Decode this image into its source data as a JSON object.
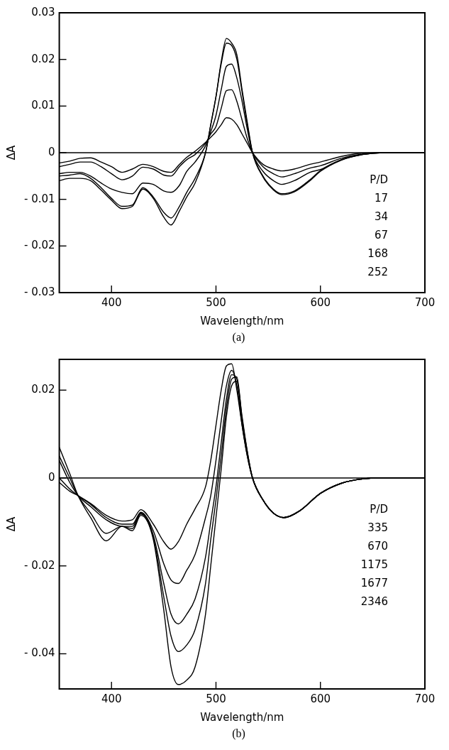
{
  "chart_data": [
    {
      "type": "line",
      "xlabel": "Wavelength/nm",
      "ylabel": "ΔA",
      "annotations": [
        "P/D",
        "17",
        "34",
        "67",
        "168",
        "252",
        "(a)"
      ],
      "grid": false,
      "marker": "none",
      "line_style": "solid",
      "xlim": [
        350,
        700
      ],
      "xticks": [
        400,
        500,
        600,
        700
      ],
      "ylim": [
        -0.03,
        0.03
      ],
      "yticks": [
        {
          "value": -0.03,
          "label": "- 0.03"
        },
        {
          "value": -0.02,
          "label": "- 0.02"
        },
        {
          "value": -0.01,
          "label": "- 0.01"
        },
        0,
        0.01,
        0.02,
        0.03
      ],
      "ref_lines": [
        {
          "axis": "y",
          "value": 0,
          "color": "#000000"
        }
      ],
      "x": [
        350,
        360,
        370,
        380,
        390,
        400,
        410,
        420,
        430,
        440,
        450,
        457,
        465,
        472,
        480,
        490,
        495,
        500,
        505,
        510,
        515,
        520,
        525,
        530,
        535,
        545,
        555,
        563,
        575,
        590,
        600,
        620,
        640,
        660,
        700
      ],
      "series": [
        {
          "color": "#000000",
          "values": [
            -0.0022,
            -0.0018,
            -0.0012,
            -0.0011,
            -0.002,
            -0.003,
            -0.0042,
            -0.0035,
            -0.0025,
            -0.003,
            -0.004,
            -0.0042,
            -0.0025,
            -0.001,
            0.0003,
            0.0022,
            0.0033,
            0.0045,
            0.006,
            0.0075,
            0.0072,
            0.006,
            0.004,
            0.002,
            0,
            -0.0025,
            -0.0035,
            -0.0039,
            -0.0035,
            -0.0025,
            -0.002,
            -0.0008,
            -0.0001,
            0,
            0
          ]
        },
        {
          "color": "#000000",
          "values": [
            -0.003,
            -0.0025,
            -0.002,
            -0.002,
            -0.003,
            -0.0045,
            -0.0058,
            -0.005,
            -0.0031,
            -0.0035,
            -0.0048,
            -0.005,
            -0.003,
            -0.0015,
            -0.0004,
            0.002,
            0.004,
            0.0056,
            0.0095,
            0.0133,
            0.0135,
            0.011,
            0.007,
            0.003,
            0,
            -0.003,
            -0.0045,
            -0.0052,
            -0.0045,
            -0.0033,
            -0.0028,
            -0.0012,
            -0.0003,
            0,
            0
          ]
        },
        {
          "color": "#000000",
          "values": [
            -0.0045,
            -0.0042,
            -0.0042,
            -0.005,
            -0.0065,
            -0.0078,
            -0.0085,
            -0.0088,
            -0.0065,
            -0.0068,
            -0.0082,
            -0.0085,
            -0.007,
            -0.004,
            -0.002,
            0.0015,
            0.0045,
            0.008,
            0.0135,
            0.0185,
            0.019,
            0.016,
            0.011,
            0.005,
            0,
            -0.004,
            -0.006,
            -0.0068,
            -0.006,
            -0.0042,
            -0.0036,
            -0.0015,
            -0.0004,
            0,
            0
          ]
        },
        {
          "color": "#000000",
          "values": [
            -0.005,
            -0.0048,
            -0.0045,
            -0.0055,
            -0.0075,
            -0.0098,
            -0.0115,
            -0.0112,
            -0.0075,
            -0.0095,
            -0.0128,
            -0.014,
            -0.0115,
            -0.0085,
            -0.0055,
            0,
            0.006,
            0.012,
            0.019,
            0.0235,
            0.023,
            0.02,
            0.013,
            0.006,
            0,
            -0.005,
            -0.0078,
            -0.0088,
            -0.0082,
            -0.0058,
            -0.0038,
            -0.0015,
            -0.0004,
            0,
            0
          ]
        },
        {
          "color": "#000000",
          "values": [
            -0.006,
            -0.0055,
            -0.0055,
            -0.006,
            -0.008,
            -0.0102,
            -0.012,
            -0.0115,
            -0.0078,
            -0.0098,
            -0.0138,
            -0.0155,
            -0.0125,
            -0.0095,
            -0.0065,
            0,
            0.006,
            0.012,
            0.0195,
            0.0245,
            0.0235,
            0.021,
            0.0135,
            0.0065,
            0,
            -0.0052,
            -0.008,
            -0.009,
            -0.0084,
            -0.006,
            -0.004,
            -0.0016,
            -0.0004,
            0,
            0
          ]
        }
      ]
    },
    {
      "type": "line",
      "xlabel": "Wavelength/nm",
      "ylabel": "ΔA",
      "annotations": [
        "P/D",
        "335",
        "670",
        "1175",
        "1677",
        "2346",
        "(b)"
      ],
      "grid": false,
      "marker": "none",
      "line_style": "solid",
      "xlim": [
        350,
        700
      ],
      "xticks": [
        400,
        500,
        600,
        700
      ],
      "ylim": [
        -0.048,
        0.027
      ],
      "yticks": [
        {
          "value": -0.04,
          "label": "- 0.04"
        },
        {
          "value": -0.02,
          "label": "- 0.02"
        },
        0,
        0.02
      ],
      "ref_lines": [
        {
          "axis": "y",
          "value": 0,
          "color": "#000000"
        }
      ],
      "x": [
        350,
        360,
        368,
        380,
        395,
        410,
        420,
        428,
        440,
        450,
        457,
        464,
        472,
        480,
        490,
        495,
        500,
        505,
        510,
        515,
        520,
        525,
        530,
        535,
        545,
        555,
        565,
        580,
        600,
        620,
        640,
        660,
        700
      ],
      "series": [
        {
          "color": "#000000",
          "values": [
            -0.001,
            -0.003,
            -0.004,
            -0.0058,
            -0.0085,
            -0.0098,
            -0.0095,
            -0.0072,
            -0.0105,
            -0.0145,
            -0.0162,
            -0.0145,
            -0.0105,
            -0.007,
            -0.002,
            0.004,
            0.012,
            0.02,
            0.0255,
            0.026,
            0.02,
            0.012,
            0.005,
            0,
            -0.005,
            -0.008,
            -0.009,
            -0.0075,
            -0.0035,
            -0.0012,
            -0.0002,
            0,
            0
          ]
        },
        {
          "color": "#000000",
          "values": [
            0,
            -0.0025,
            -0.004,
            -0.006,
            -0.009,
            -0.0105,
            -0.0105,
            -0.0078,
            -0.012,
            -0.0195,
            -0.0232,
            -0.024,
            -0.021,
            -0.0174,
            -0.009,
            -0.004,
            0.004,
            0.013,
            0.021,
            0.0245,
            0.021,
            0.012,
            0.005,
            0,
            -0.005,
            -0.008,
            -0.009,
            -0.0075,
            -0.0035,
            -0.0012,
            -0.0002,
            0,
            0
          ]
        },
        {
          "color": "#000000",
          "values": [
            0.004,
            -0.001,
            -0.004,
            -0.0065,
            -0.0095,
            -0.011,
            -0.011,
            -0.008,
            -0.013,
            -0.024,
            -0.031,
            -0.0332,
            -0.031,
            -0.0275,
            -0.018,
            -0.01,
            -0.002,
            0.008,
            0.018,
            0.0235,
            0.0225,
            0.013,
            0.0055,
            0,
            -0.005,
            -0.008,
            -0.009,
            -0.0075,
            -0.0035,
            -0.0012,
            -0.0002,
            0,
            0
          ]
        },
        {
          "color": "#000000",
          "values": [
            0.005,
            0,
            -0.004,
            -0.008,
            -0.0126,
            -0.011,
            -0.0115,
            -0.0082,
            -0.0135,
            -0.027,
            -0.036,
            -0.0395,
            -0.038,
            -0.0345,
            -0.024,
            -0.014,
            -0.005,
            0.005,
            0.016,
            0.0225,
            0.023,
            0.0135,
            0.006,
            0,
            -0.005,
            -0.008,
            -0.009,
            -0.0075,
            -0.0035,
            -0.0012,
            -0.0002,
            0,
            0
          ]
        },
        {
          "color": "#000000",
          "values": [
            0.007,
            0.001,
            -0.004,
            -0.009,
            -0.0143,
            -0.011,
            -0.012,
            -0.0085,
            -0.014,
            -0.03,
            -0.043,
            -0.047,
            -0.046,
            -0.043,
            -0.031,
            -0.02,
            -0.009,
            0.002,
            0.014,
            0.021,
            0.022,
            0.014,
            0.006,
            0,
            -0.005,
            -0.008,
            -0.009,
            -0.0075,
            -0.0035,
            -0.0012,
            -0.0002,
            0,
            0
          ]
        }
      ]
    }
  ]
}
